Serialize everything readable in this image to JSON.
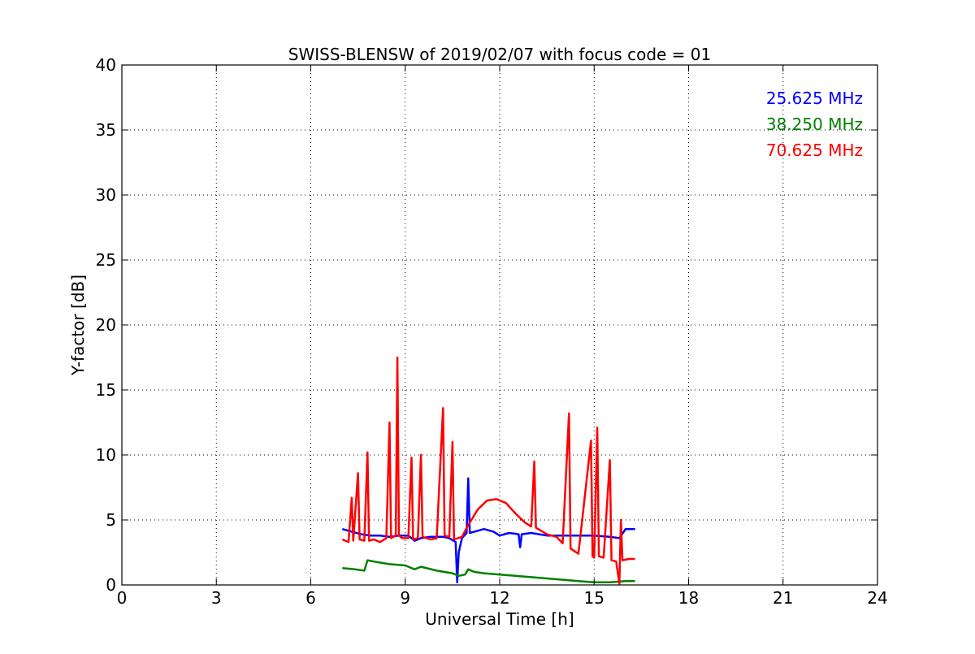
{
  "chart_data": {
    "type": "line",
    "title": "SWISS-BLENSW of 2019/02/07 with focus code = 01",
    "xlabel": "Universal Time [h]",
    "ylabel": "Y-factor [dB]",
    "xlim": [
      0,
      24
    ],
    "ylim": [
      0,
      40
    ],
    "x_ticks": [
      0,
      3,
      6,
      9,
      12,
      15,
      18,
      21,
      24
    ],
    "y_ticks": [
      0,
      5,
      10,
      15,
      20,
      25,
      30,
      35,
      40
    ],
    "grid": true,
    "legend_position": "top-right",
    "series": [
      {
        "name": "25.625 MHz",
        "color": "#0000ff",
        "points": [
          [
            7.0,
            4.3
          ],
          [
            7.3,
            4.1
          ],
          [
            7.6,
            3.9
          ],
          [
            7.9,
            3.8
          ],
          [
            8.2,
            3.8
          ],
          [
            8.5,
            3.7
          ],
          [
            8.8,
            3.8
          ],
          [
            9.1,
            3.8
          ],
          [
            9.3,
            3.4
          ],
          [
            9.5,
            3.6
          ],
          [
            9.8,
            3.7
          ],
          [
            10.0,
            3.7
          ],
          [
            10.2,
            3.7
          ],
          [
            10.4,
            3.6
          ],
          [
            10.6,
            3.3
          ],
          [
            10.65,
            0.2
          ],
          [
            10.7,
            2.5
          ],
          [
            10.8,
            3.6
          ],
          [
            10.95,
            4.0
          ],
          [
            11.0,
            8.2
          ],
          [
            11.05,
            4.0
          ],
          [
            11.2,
            4.1
          ],
          [
            11.5,
            4.3
          ],
          [
            11.8,
            4.1
          ],
          [
            12.0,
            3.8
          ],
          [
            12.3,
            4.0
          ],
          [
            12.6,
            3.9
          ],
          [
            12.65,
            2.9
          ],
          [
            12.7,
            3.9
          ],
          [
            13.0,
            4.0
          ],
          [
            13.5,
            3.8
          ],
          [
            14.0,
            3.8
          ],
          [
            14.5,
            3.8
          ],
          [
            15.0,
            3.8
          ],
          [
            15.5,
            3.7
          ],
          [
            15.8,
            3.6
          ],
          [
            16.0,
            4.3
          ],
          [
            16.3,
            4.3
          ]
        ]
      },
      {
        "name": "38.250 MHz",
        "color": "#008000",
        "points": [
          [
            7.0,
            1.3
          ],
          [
            7.4,
            1.2
          ],
          [
            7.7,
            1.1
          ],
          [
            7.8,
            1.9
          ],
          [
            8.0,
            1.8
          ],
          [
            8.5,
            1.6
          ],
          [
            9.0,
            1.5
          ],
          [
            9.3,
            1.2
          ],
          [
            9.5,
            1.4
          ],
          [
            10.0,
            1.1
          ],
          [
            10.5,
            0.9
          ],
          [
            10.7,
            0.7
          ],
          [
            10.9,
            0.8
          ],
          [
            11.0,
            1.2
          ],
          [
            11.2,
            1.0
          ],
          [
            11.5,
            0.9
          ],
          [
            12.0,
            0.8
          ],
          [
            12.5,
            0.7
          ],
          [
            13.0,
            0.6
          ],
          [
            13.5,
            0.5
          ],
          [
            14.0,
            0.4
          ],
          [
            14.5,
            0.3
          ],
          [
            15.0,
            0.2
          ],
          [
            15.5,
            0.2
          ],
          [
            16.0,
            0.3
          ],
          [
            16.3,
            0.3
          ]
        ]
      },
      {
        "name": "70.625 MHz",
        "color": "#ff0000",
        "points": [
          [
            7.0,
            3.5
          ],
          [
            7.2,
            3.3
          ],
          [
            7.3,
            6.7
          ],
          [
            7.35,
            3.4
          ],
          [
            7.5,
            8.6
          ],
          [
            7.55,
            3.5
          ],
          [
            7.7,
            3.4
          ],
          [
            7.8,
            10.2
          ],
          [
            7.85,
            3.4
          ],
          [
            8.0,
            3.5
          ],
          [
            8.2,
            3.3
          ],
          [
            8.4,
            3.6
          ],
          [
            8.5,
            12.5
          ],
          [
            8.55,
            3.6
          ],
          [
            8.7,
            3.8
          ],
          [
            8.75,
            17.5
          ],
          [
            8.8,
            3.8
          ],
          [
            8.9,
            3.6
          ],
          [
            9.1,
            3.6
          ],
          [
            9.2,
            9.8
          ],
          [
            9.25,
            3.5
          ],
          [
            9.4,
            3.6
          ],
          [
            9.5,
            10.0
          ],
          [
            9.55,
            3.7
          ],
          [
            9.8,
            3.5
          ],
          [
            10.0,
            3.6
          ],
          [
            10.2,
            13.6
          ],
          [
            10.25,
            3.8
          ],
          [
            10.4,
            3.7
          ],
          [
            10.5,
            11.0
          ],
          [
            10.55,
            3.5
          ],
          [
            10.8,
            3.7
          ],
          [
            11.0,
            4.6
          ],
          [
            11.3,
            5.8
          ],
          [
            11.6,
            6.5
          ],
          [
            11.9,
            6.6
          ],
          [
            12.2,
            6.3
          ],
          [
            12.5,
            5.5
          ],
          [
            12.8,
            4.8
          ],
          [
            13.0,
            4.5
          ],
          [
            13.1,
            9.5
          ],
          [
            13.15,
            4.4
          ],
          [
            13.5,
            3.9
          ],
          [
            13.8,
            3.7
          ],
          [
            14.0,
            3.2
          ],
          [
            14.2,
            13.2
          ],
          [
            14.25,
            2.8
          ],
          [
            14.5,
            2.4
          ],
          [
            14.9,
            11.1
          ],
          [
            14.95,
            2.2
          ],
          [
            15.0,
            2.1
          ],
          [
            15.1,
            12.1
          ],
          [
            15.15,
            2.2
          ],
          [
            15.3,
            2.1
          ],
          [
            15.5,
            9.6
          ],
          [
            15.55,
            1.9
          ],
          [
            15.7,
            1.8
          ],
          [
            15.8,
            0.1
          ],
          [
            15.85,
            5.0
          ],
          [
            15.9,
            1.9
          ],
          [
            16.1,
            2.0
          ],
          [
            16.3,
            2.0
          ]
        ]
      }
    ]
  }
}
